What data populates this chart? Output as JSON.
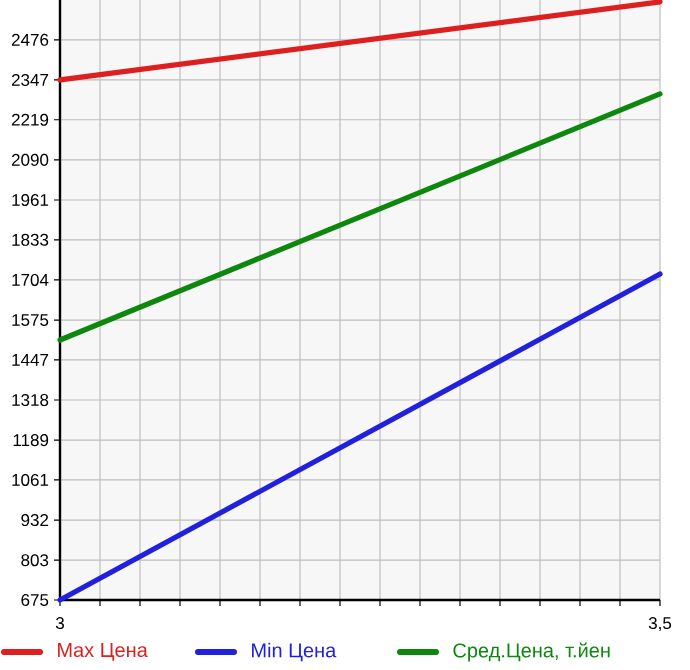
{
  "chart_data": {
    "type": "line",
    "x": [
      3,
      3.5
    ],
    "xlim": [
      3,
      3.5
    ],
    "xticks": [
      3,
      {
        "value": 3.5,
        "label": "3,5"
      }
    ],
    "ylim": [
      675,
      2604
    ],
    "yticks": [
      675,
      803,
      932,
      1061,
      1189,
      1318,
      1447,
      1575,
      1704,
      1833,
      1961,
      2090,
      2219,
      2347,
      2476
    ],
    "grid": true,
    "legend": "bottom",
    "marker": "none",
    "line_style": "solid",
    "series": [
      {
        "name": "Max Цена",
        "color": "#dd1f1f",
        "values": [
          2347,
          2598
        ]
      },
      {
        "name": "Min Цена",
        "color": "#2020dd",
        "values": [
          675,
          1723
        ]
      },
      {
        "name": "Сред.Цена, т.йен",
        "color": "#0e870e",
        "values": [
          1511,
          2302
        ]
      }
    ]
  }
}
